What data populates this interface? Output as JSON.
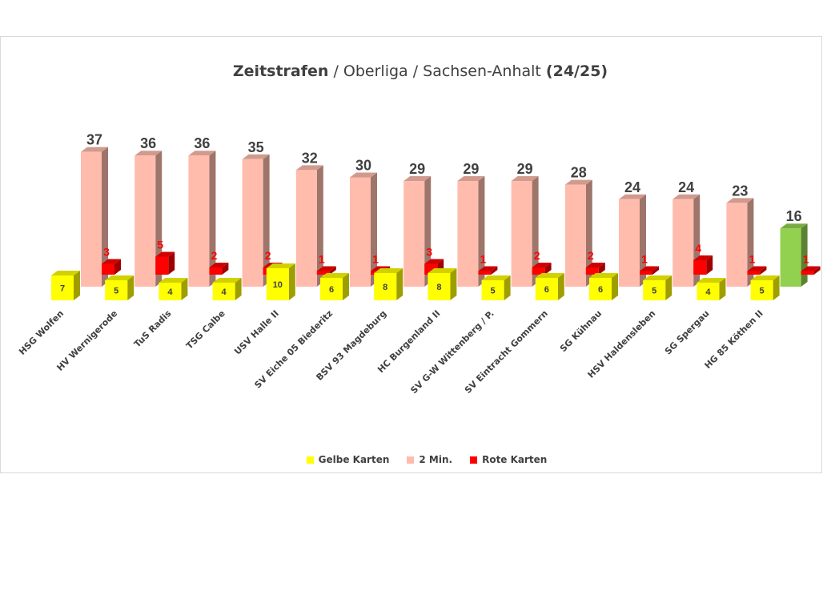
{
  "title": {
    "part1": "Zeitstrafen",
    "part2": " / Oberliga / Sachsen-Anhalt ",
    "part3": "(24/25)"
  },
  "chart_data": {
    "type": "bar",
    "title": "Zeitstrafen / Oberliga / Sachsen-Anhalt (24/25)",
    "categories": [
      "HSG Wolfen",
      "HV Wernigerode",
      "TuS Radis",
      "TSG Calbe",
      "USV Halle II",
      "SV Eiche 05 Biederitz",
      "BSV 93 Magdeburg",
      "HC Burgenland II",
      "SV G-W Wittenberg / P.",
      "SV Eintracht Gommern",
      "SG Kühnau",
      "HSV Haldensleben",
      "SG Spergau",
      "HG 85 Köthen II"
    ],
    "series": [
      {
        "name": "Gelbe Karten",
        "color": "#ffff00",
        "values": [
          7,
          5,
          4,
          4,
          10,
          6,
          8,
          8,
          5,
          6,
          6,
          5,
          4,
          5
        ]
      },
      {
        "name": "2 Min.",
        "color": "#ffbcad",
        "highlight_color": "#92d050",
        "highlight_index": 13,
        "values": [
          37,
          36,
          36,
          35,
          32,
          30,
          29,
          29,
          29,
          28,
          24,
          24,
          23,
          16
        ]
      },
      {
        "name": "Rote Karten",
        "color": "#ff0000",
        "values": [
          3,
          5,
          2,
          2,
          1,
          1,
          3,
          1,
          2,
          2,
          1,
          4,
          1,
          1
        ]
      }
    ],
    "grid": false,
    "legend_position": "bottom"
  }
}
